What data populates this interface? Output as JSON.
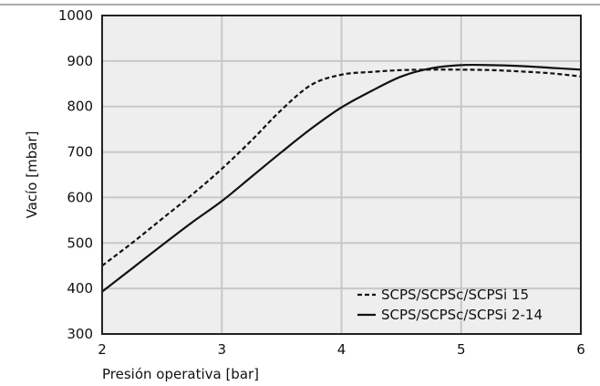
{
  "chart_data": {
    "type": "line",
    "title": "",
    "xlabel": "Presión operativa [bar]",
    "ylabel": "Vacío [mbar]",
    "xlim": [
      2,
      6
    ],
    "ylim": [
      300,
      1000
    ],
    "x_ticks": [
      "2",
      "3",
      "4",
      "5",
      "6"
    ],
    "y_ticks": [
      "300",
      "400",
      "500",
      "600",
      "700",
      "800",
      "900",
      "1000"
    ],
    "grid": true,
    "legend_position": "bottom-right",
    "series": [
      {
        "name": "SCPS/SCPSc/SCPSi 15",
        "style": "dashed",
        "color": "#111111",
        "x": [
          2.0,
          2.25,
          2.5,
          2.75,
          3.0,
          3.25,
          3.5,
          3.75,
          4.0,
          4.25,
          4.5,
          4.75,
          5.0,
          5.25,
          5.5,
          5.75,
          6.0
        ],
        "y": [
          450,
          500,
          553,
          606,
          663,
          726,
          793,
          848,
          870,
          876,
          880,
          881,
          881,
          880,
          877,
          873,
          866
        ]
      },
      {
        "name": "SCPS/SCPSc/SCPSi 2-14",
        "style": "solid",
        "color": "#111111",
        "x": [
          2.0,
          2.25,
          2.5,
          2.75,
          3.0,
          3.25,
          3.5,
          3.75,
          4.0,
          4.25,
          4.5,
          4.75,
          5.0,
          5.25,
          5.5,
          5.75,
          6.0
        ],
        "y": [
          393,
          444,
          495,
          545,
          592,
          646,
          700,
          752,
          798,
          834,
          866,
          884,
          891,
          891,
          889,
          885,
          881
        ]
      }
    ]
  },
  "colors": {
    "plot_background": "#eeeeee",
    "grid": "#c8c8c8",
    "frame": "#222222"
  }
}
